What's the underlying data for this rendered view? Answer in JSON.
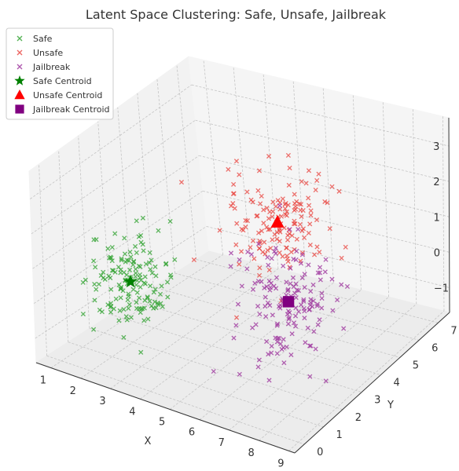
{
  "chart_data": {
    "type": "scatter",
    "projection": "3d",
    "title": "Latent Space Clustering: Safe, Unsafe, Jailbreak",
    "xlabel": "X",
    "ylabel": "Y",
    "zlabel": "",
    "xlim": [
      0.5,
      9.2
    ],
    "ylim": [
      -0.5,
      7.6
    ],
    "zlim": [
      -1.7,
      3.8
    ],
    "xticks": [
      "1",
      "2",
      "3",
      "4",
      "5",
      "6",
      "7",
      "8",
      "9"
    ],
    "yticks": [
      "0",
      "1",
      "2",
      "3",
      "4",
      "5",
      "6",
      "7"
    ],
    "zticks": [
      "−1",
      "0",
      "1",
      "2",
      "3"
    ],
    "grid": true,
    "legend_position": "top-left",
    "marker": "x",
    "series": [
      {
        "name": "Safe",
        "color": "#2ca02c",
        "count": 150,
        "center": [
          2,
          2,
          0
        ],
        "spread": 0.6
      },
      {
        "name": "Unsafe",
        "color": "#e8413c",
        "count": 150,
        "center": [
          5,
          5,
          1.1
        ],
        "spread": 0.72
      },
      {
        "name": "Jailbreak",
        "color": "#9b2f9b",
        "count": 150,
        "center": [
          6,
          4,
          -0.45
        ],
        "spread": 0.78
      }
    ],
    "centroids": [
      {
        "name": "Safe Centroid",
        "x": 2,
        "y": 2,
        "z": 0,
        "color": "#008000",
        "marker": "star"
      },
      {
        "name": "Unsafe Centroid",
        "x": 5,
        "y": 5,
        "z": 1.1,
        "color": "#ff0000",
        "marker": "triangle"
      },
      {
        "name": "Jailbreak Centroid",
        "x": 6,
        "y": 4,
        "z": -0.45,
        "color": "#800080",
        "marker": "square"
      }
    ]
  }
}
